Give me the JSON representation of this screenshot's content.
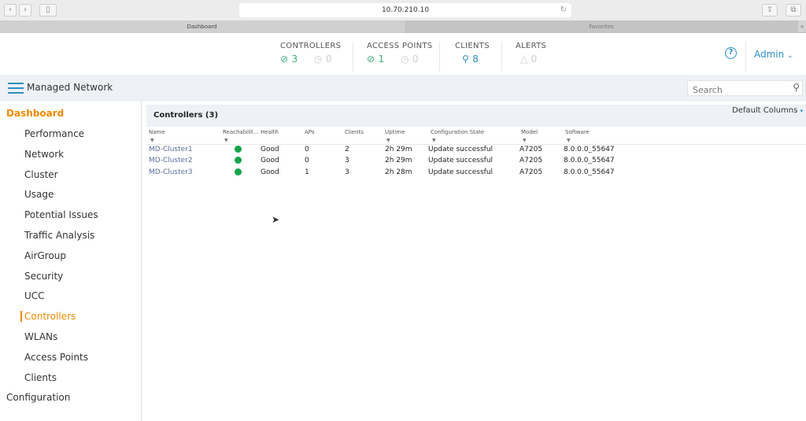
{
  "browser": {
    "url": "10.70.210.10",
    "tabs": [
      "Dashboard",
      "Favorites"
    ]
  },
  "header": {
    "stats": [
      {
        "label": "CONTROLLERS",
        "up": "3",
        "down": "0"
      },
      {
        "label": "ACCESS POINTS",
        "up": "1",
        "down": "0"
      },
      {
        "label": "CLIENTS",
        "value": "8"
      },
      {
        "label": "ALERTS",
        "value": "0"
      }
    ],
    "user": "Admin"
  },
  "subbar": {
    "title": "Managed Network",
    "search_placeholder": "Search"
  },
  "sidebar": {
    "section": "Dashboard",
    "items": [
      "Performance",
      "Network",
      "Cluster",
      "Usage",
      "Potential Issues",
      "Traffic Analysis",
      "AirGroup",
      "Security",
      "UCC",
      "Controllers",
      "WLANs",
      "Access Points",
      "Clients"
    ],
    "active": "Controllers",
    "footer": "Configuration"
  },
  "panel": {
    "title": "Controllers (3)",
    "columns_menu": "Default Columns",
    "columns": [
      "Name",
      "Reachabilit...",
      "Health",
      "APs",
      "Clients",
      "Uptime",
      "Configuration State",
      "Model",
      "Software"
    ],
    "rows": [
      {
        "name": "MD-Cluster1",
        "reachability": "up",
        "health": "Good",
        "aps": "0",
        "clients": "2",
        "uptime": "2h 29m",
        "config": "Update successful",
        "model": "A7205",
        "software": "8.0.0.0_55647"
      },
      {
        "name": "MD-Cluster2",
        "reachability": "up",
        "health": "Good",
        "aps": "0",
        "clients": "3",
        "uptime": "2h 29m",
        "config": "Update successful",
        "model": "A7205",
        "software": "8.0.0.0_55647"
      },
      {
        "name": "MD-Cluster3",
        "reachability": "up",
        "health": "Good",
        "aps": "1",
        "clients": "3",
        "uptime": "2h 28m",
        "config": "Update successful",
        "model": "A7205",
        "software": "8.0.0.0_55647"
      }
    ]
  },
  "colors": {
    "accent": "#f08a00",
    "link": "#5a6f9a",
    "ok": "#16a34a",
    "brand_blue": "#2c8fc4"
  }
}
